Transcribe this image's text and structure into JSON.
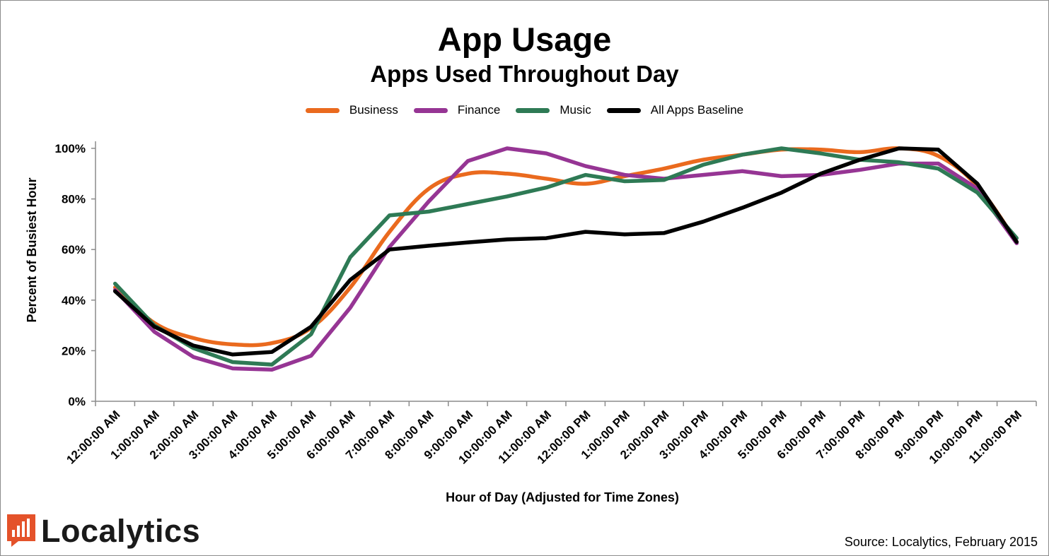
{
  "chart_data": {
    "type": "line",
    "title": "App Usage",
    "subtitle": "Apps Used Throughout Day",
    "xlabel": "Hour of Day (Adjusted for Time Zones)",
    "ylabel": "Percent of Busiest Hour",
    "ylim": [
      0,
      100
    ],
    "yticks": [
      "0%",
      "20%",
      "40%",
      "60%",
      "80%",
      "100%"
    ],
    "grid": false,
    "legend_position": "top-center",
    "categories": [
      "12:00:00 AM",
      "1:00:00 AM",
      "2:00:00 AM",
      "3:00:00 AM",
      "4:00:00 AM",
      "5:00:00 AM",
      "6:00:00 AM",
      "7:00:00 AM",
      "8:00:00 AM",
      "9:00:00 AM",
      "10:00:00 AM",
      "11:00:00 AM",
      "12:00:00 PM",
      "1:00:00 PM",
      "2:00:00 PM",
      "3:00:00 PM",
      "4:00:00 PM",
      "5:00:00 PM",
      "6:00:00 PM",
      "7:00:00 PM",
      "8:00:00 PM",
      "9:00:00 PM",
      "10:00:00 PM",
      "11:00:00 PM"
    ],
    "series": [
      {
        "name": "Business",
        "color": "#ea6a1e",
        "values": [
          45,
          31,
          25,
          22.5,
          23,
          29,
          45,
          67,
          84,
          90,
          90,
          88,
          86,
          89,
          92,
          95.5,
          97.5,
          99.5,
          99.5,
          98.5,
          100,
          97,
          85,
          63
        ]
      },
      {
        "name": "Finance",
        "color": "#963594",
        "values": [
          44,
          27.5,
          17.5,
          13,
          12.5,
          18,
          37,
          61,
          79,
          95,
          100,
          98,
          93,
          89.5,
          88,
          89.5,
          91,
          89,
          89.5,
          91.5,
          94,
          94,
          84,
          62.5
        ]
      },
      {
        "name": "Music",
        "color": "#2e7a55",
        "values": [
          46.5,
          30,
          21,
          15.5,
          14.5,
          26.5,
          57,
          73.5,
          75,
          78,
          81,
          84.5,
          89.5,
          87,
          87.5,
          93.5,
          97.5,
          100,
          98,
          95.5,
          94.5,
          92,
          82.5,
          64.5
        ]
      },
      {
        "name": "All Apps Baseline",
        "color": "#000000",
        "values": [
          43.5,
          29.5,
          22,
          18.5,
          19.5,
          29.5,
          48,
          60,
          61.5,
          62.8,
          64,
          64.5,
          67,
          66,
          66.5,
          71,
          76.5,
          82.5,
          90,
          95.5,
          100,
          99.5,
          86,
          63
        ]
      }
    ]
  },
  "source": "Source: Localytics, February 2015",
  "logo": {
    "text": "Localytics",
    "color": "#e4522a"
  }
}
